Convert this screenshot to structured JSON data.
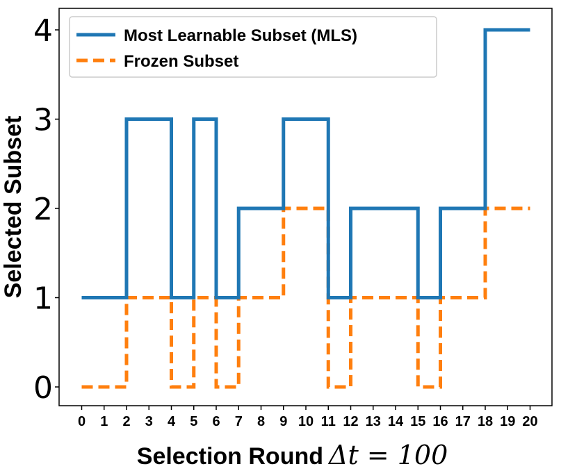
{
  "chart_data": {
    "type": "line",
    "step": "post",
    "title": "",
    "xlabel": "Selection Round",
    "xlabel_math": "Δt = 100",
    "ylabel": "Selected Subset",
    "xlim": [
      0,
      20
    ],
    "ylim": [
      0,
      4
    ],
    "xticks": [
      "0",
      "1",
      "2",
      "3",
      "4",
      "5",
      "6",
      "7",
      "8",
      "9",
      "10",
      "11",
      "12",
      "13",
      "14",
      "15",
      "16",
      "17",
      "18",
      "19",
      "20"
    ],
    "yticks": [
      "0",
      "1",
      "2",
      "3",
      "4"
    ],
    "grid": false,
    "legend_position": "top-left",
    "x": [
      0,
      1,
      2,
      3,
      4,
      5,
      6,
      7,
      8,
      9,
      10,
      11,
      12,
      13,
      14,
      15,
      16,
      17,
      18,
      19,
      20
    ],
    "series": [
      {
        "name": "Most Learnable Subset (MLS)",
        "color": "#1f77b4",
        "style": "solid",
        "values": [
          1,
          1,
          3,
          3,
          1,
          3,
          1,
          2,
          2,
          3,
          3,
          1,
          2,
          2,
          2,
          1,
          2,
          2,
          4,
          4,
          4
        ]
      },
      {
        "name": "Frozen Subset",
        "color": "#ff7f0e",
        "style": "dashed",
        "values": [
          0,
          0,
          1,
          1,
          0,
          1,
          0,
          1,
          1,
          2,
          2,
          0,
          1,
          1,
          1,
          0,
          1,
          1,
          2,
          2,
          2
        ]
      }
    ]
  }
}
